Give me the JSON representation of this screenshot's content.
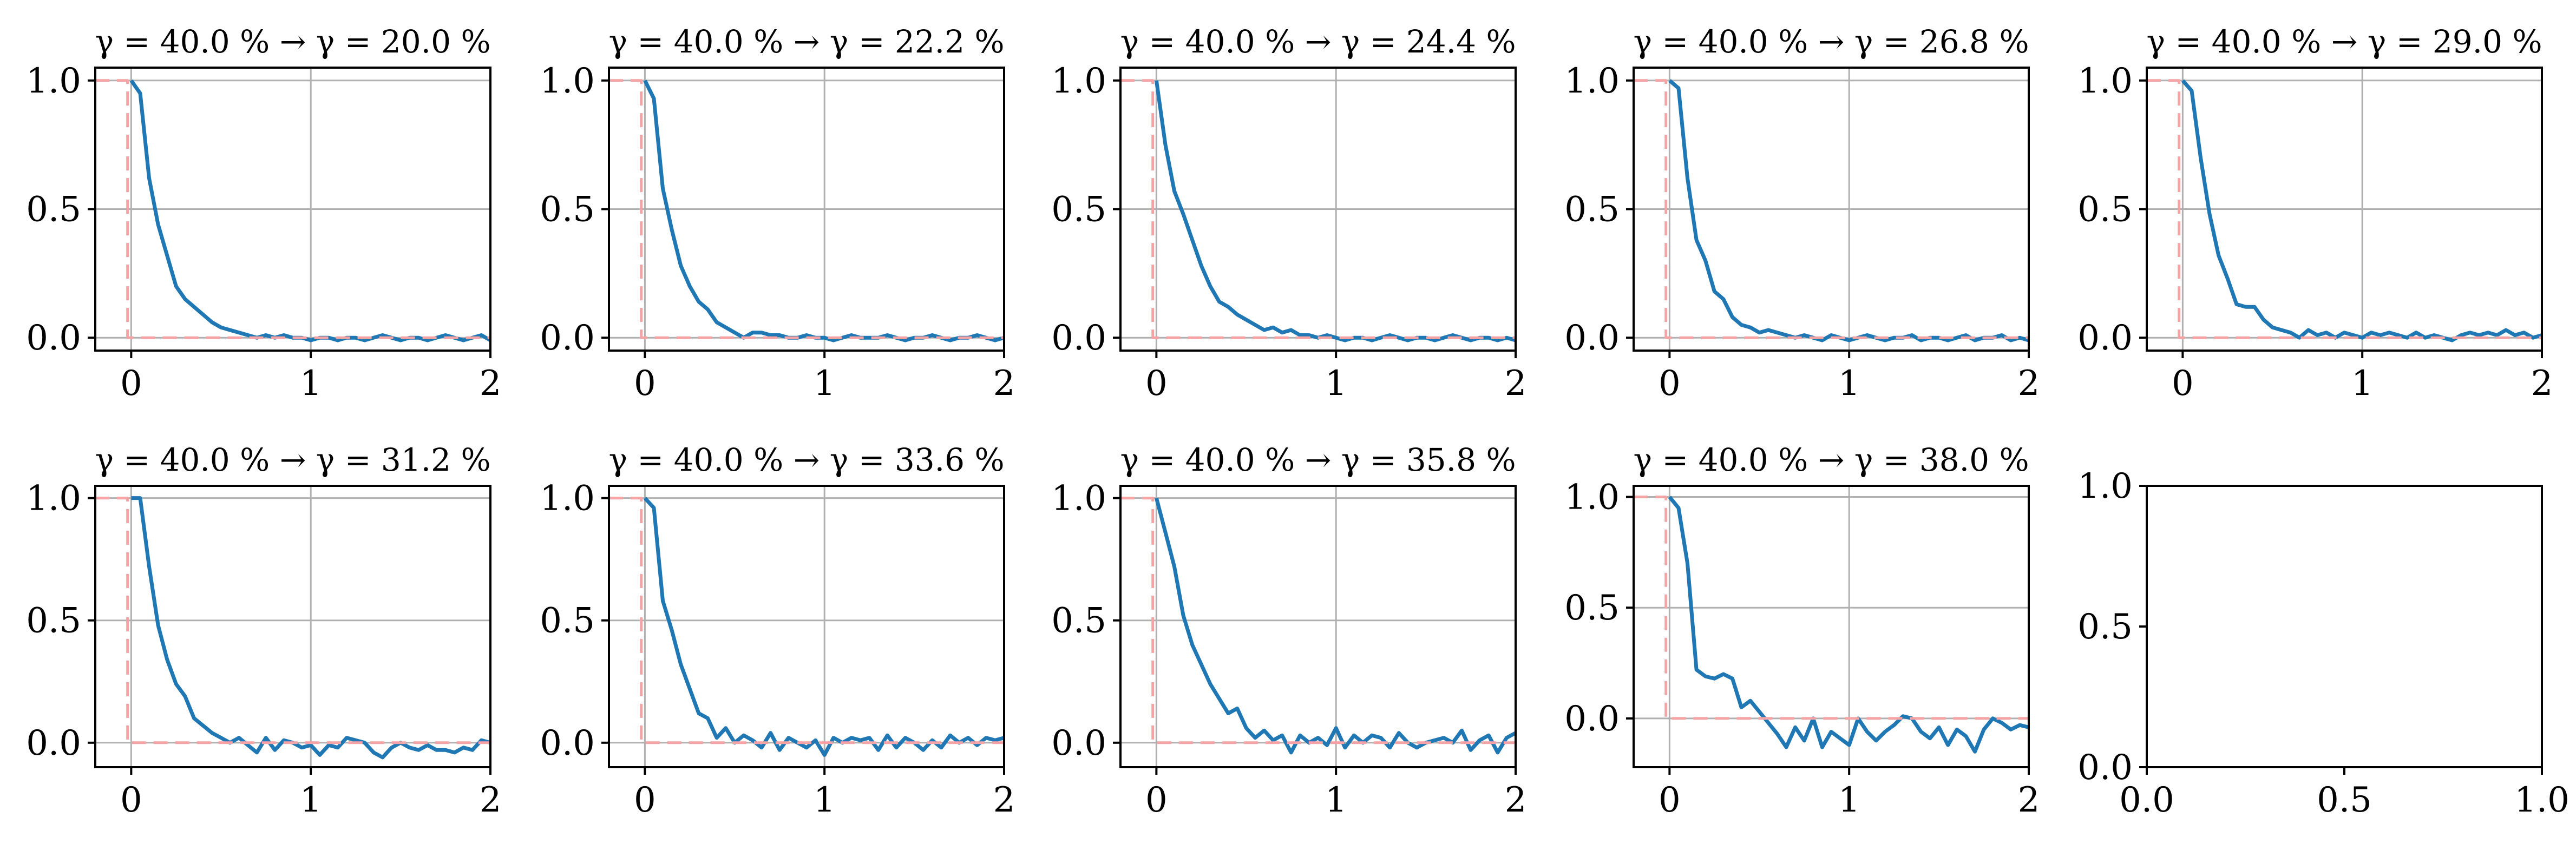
{
  "colors": {
    "line": "#1f77b4",
    "step": "#f4a4a4",
    "grid": "#b0b0b0",
    "axes": "#000000"
  },
  "chart_data": [
    {
      "type": "line",
      "title": "γ = 40.0 % → γ = 20.0 %",
      "xlim": [
        -0.2,
        2
      ],
      "ylim": [
        -0.05,
        1.05
      ],
      "xticks": [
        "0",
        "1",
        "2"
      ],
      "yticks": [
        "0.0",
        "0.5",
        "1.0"
      ],
      "grid": true,
      "series": [
        {
          "x": [
            0,
            0.05,
            0.1,
            0.15,
            0.2,
            0.25,
            0.3,
            0.35,
            0.4,
            0.45,
            0.5,
            0.55,
            0.6,
            0.65,
            0.7,
            0.75,
            0.8,
            0.85,
            0.9,
            0.95,
            1.0,
            1.05,
            1.1,
            1.15,
            1.2,
            1.25,
            1.3,
            1.35,
            1.4,
            1.45,
            1.5,
            1.55,
            1.6,
            1.65,
            1.7,
            1.75,
            1.8,
            1.85,
            1.9,
            1.95,
            2.0
          ],
          "y": [
            1.0,
            0.95,
            0.62,
            0.44,
            0.32,
            0.2,
            0.15,
            0.12,
            0.09,
            0.06,
            0.04,
            0.03,
            0.02,
            0.01,
            0.0,
            0.01,
            0.0,
            0.01,
            0.0,
            0.0,
            -0.01,
            0.0,
            0.0,
            -0.01,
            0.0,
            0.0,
            -0.01,
            0.0,
            0.01,
            0.0,
            -0.01,
            0.0,
            0.0,
            -0.01,
            0.0,
            0.01,
            0.0,
            -0.01,
            0.0,
            0.01,
            -0.01
          ]
        },
        {
          "x": [
            -0.2,
            -0.02,
            -0.02,
            2.0
          ],
          "y": [
            1.0,
            1.0,
            0.0,
            0.0
          ]
        }
      ]
    },
    {
      "type": "line",
      "title": "γ = 40.0 % → γ = 22.2 %",
      "xlim": [
        -0.2,
        2
      ],
      "ylim": [
        -0.05,
        1.05
      ],
      "xticks": [
        "0",
        "1",
        "2"
      ],
      "yticks": [
        "0.0",
        "0.5",
        "1.0"
      ],
      "grid": true,
      "series": [
        {
          "x": [
            0,
            0.05,
            0.1,
            0.15,
            0.2,
            0.25,
            0.3,
            0.35,
            0.4,
            0.45,
            0.5,
            0.55,
            0.6,
            0.65,
            0.7,
            0.75,
            0.8,
            0.85,
            0.9,
            0.95,
            1.0,
            1.05,
            1.1,
            1.15,
            1.2,
            1.25,
            1.3,
            1.35,
            1.4,
            1.45,
            1.5,
            1.55,
            1.6,
            1.65,
            1.7,
            1.75,
            1.8,
            1.85,
            1.9,
            1.95,
            2.0
          ],
          "y": [
            1.0,
            0.93,
            0.58,
            0.42,
            0.28,
            0.2,
            0.14,
            0.11,
            0.06,
            0.04,
            0.02,
            0.0,
            0.02,
            0.02,
            0.01,
            0.01,
            0.0,
            0.0,
            0.01,
            0.0,
            0.0,
            -0.01,
            0.0,
            0.01,
            0.0,
            0.0,
            0.0,
            0.01,
            0.0,
            -0.01,
            0.0,
            0.0,
            0.01,
            0.0,
            -0.01,
            0.0,
            0.0,
            0.01,
            0.0,
            -0.01,
            0.0
          ]
        },
        {
          "x": [
            -0.2,
            -0.02,
            -0.02,
            2.0
          ],
          "y": [
            1.0,
            1.0,
            0.0,
            0.0
          ]
        }
      ]
    },
    {
      "type": "line",
      "title": "γ = 40.0 % → γ = 24.4 %",
      "xlim": [
        -0.2,
        2
      ],
      "ylim": [
        -0.05,
        1.05
      ],
      "xticks": [
        "0",
        "1",
        "2"
      ],
      "yticks": [
        "0.0",
        "0.5",
        "1.0"
      ],
      "grid": true,
      "series": [
        {
          "x": [
            0,
            0.05,
            0.1,
            0.15,
            0.2,
            0.25,
            0.3,
            0.35,
            0.4,
            0.45,
            0.5,
            0.55,
            0.6,
            0.65,
            0.7,
            0.75,
            0.8,
            0.85,
            0.9,
            0.95,
            1.0,
            1.05,
            1.1,
            1.15,
            1.2,
            1.25,
            1.3,
            1.35,
            1.4,
            1.45,
            1.5,
            1.55,
            1.6,
            1.65,
            1.7,
            1.75,
            1.8,
            1.85,
            1.9,
            1.95,
            2.0
          ],
          "y": [
            1.0,
            0.75,
            0.57,
            0.48,
            0.38,
            0.28,
            0.2,
            0.14,
            0.12,
            0.09,
            0.07,
            0.05,
            0.03,
            0.04,
            0.02,
            0.03,
            0.01,
            0.01,
            0.0,
            0.01,
            0.0,
            -0.01,
            0.0,
            0.0,
            -0.01,
            0.0,
            0.01,
            0.0,
            -0.01,
            0.0,
            0.0,
            -0.01,
            0.0,
            0.01,
            0.0,
            -0.01,
            0.0,
            0.0,
            -0.01,
            0.0,
            -0.01
          ]
        },
        {
          "x": [
            -0.2,
            -0.02,
            -0.02,
            2.0
          ],
          "y": [
            1.0,
            1.0,
            0.0,
            0.0
          ]
        }
      ]
    },
    {
      "type": "line",
      "title": "γ = 40.0 % → γ = 26.8 %",
      "xlim": [
        -0.2,
        2
      ],
      "ylim": [
        -0.05,
        1.05
      ],
      "xticks": [
        "0",
        "1",
        "2"
      ],
      "yticks": [
        "0.0",
        "0.5",
        "1.0"
      ],
      "grid": true,
      "series": [
        {
          "x": [
            0,
            0.05,
            0.1,
            0.15,
            0.2,
            0.25,
            0.3,
            0.35,
            0.4,
            0.45,
            0.5,
            0.55,
            0.6,
            0.65,
            0.7,
            0.75,
            0.8,
            0.85,
            0.9,
            0.95,
            1.0,
            1.05,
            1.1,
            1.15,
            1.2,
            1.25,
            1.3,
            1.35,
            1.4,
            1.45,
            1.5,
            1.55,
            1.6,
            1.65,
            1.7,
            1.75,
            1.8,
            1.85,
            1.9,
            1.95,
            2.0
          ],
          "y": [
            1.0,
            0.97,
            0.62,
            0.38,
            0.3,
            0.18,
            0.15,
            0.08,
            0.05,
            0.04,
            0.02,
            0.03,
            0.02,
            0.01,
            0.0,
            0.01,
            0.0,
            -0.01,
            0.01,
            0.0,
            -0.01,
            0.0,
            0.01,
            0.0,
            -0.01,
            0.0,
            0.0,
            0.01,
            -0.01,
            0.0,
            0.0,
            -0.01,
            0.0,
            0.01,
            -0.01,
            0.0,
            0.0,
            0.01,
            -0.01,
            0.0,
            -0.01
          ]
        },
        {
          "x": [
            -0.2,
            -0.02,
            -0.02,
            2.0
          ],
          "y": [
            1.0,
            1.0,
            0.0,
            0.0
          ]
        }
      ]
    },
    {
      "type": "line",
      "title": "γ = 40.0 % → γ = 29.0 %",
      "xlim": [
        -0.2,
        2
      ],
      "ylim": [
        -0.05,
        1.05
      ],
      "xticks": [
        "0",
        "1",
        "2"
      ],
      "yticks": [
        "0.0",
        "0.5",
        "1.0"
      ],
      "grid": true,
      "series": [
        {
          "x": [
            0,
            0.05,
            0.1,
            0.15,
            0.2,
            0.25,
            0.3,
            0.35,
            0.4,
            0.45,
            0.5,
            0.55,
            0.6,
            0.65,
            0.7,
            0.75,
            0.8,
            0.85,
            0.9,
            0.95,
            1.0,
            1.05,
            1.1,
            1.15,
            1.2,
            1.25,
            1.3,
            1.35,
            1.4,
            1.45,
            1.5,
            1.55,
            1.6,
            1.65,
            1.7,
            1.75,
            1.8,
            1.85,
            1.9,
            1.95,
            2.0
          ],
          "y": [
            1.0,
            0.96,
            0.7,
            0.48,
            0.32,
            0.23,
            0.13,
            0.12,
            0.12,
            0.07,
            0.04,
            0.03,
            0.02,
            0.0,
            0.03,
            0.01,
            0.02,
            0.0,
            0.02,
            0.01,
            0.0,
            0.02,
            0.01,
            0.02,
            0.01,
            0.0,
            0.02,
            0.0,
            0.01,
            0.0,
            -0.01,
            0.01,
            0.02,
            0.01,
            0.02,
            0.01,
            0.03,
            0.01,
            0.02,
            0.0,
            0.01
          ]
        },
        {
          "x": [
            -0.2,
            -0.02,
            -0.02,
            2.0
          ],
          "y": [
            1.0,
            1.0,
            0.0,
            0.0
          ]
        }
      ]
    },
    {
      "type": "line",
      "title": "γ = 40.0 % → γ = 31.2 %",
      "xlim": [
        -0.2,
        2
      ],
      "ylim": [
        -0.1,
        1.05
      ],
      "xticks": [
        "0",
        "1",
        "2"
      ],
      "yticks": [
        "0.0",
        "0.5",
        "1.0"
      ],
      "grid": true,
      "series": [
        {
          "x": [
            0,
            0.05,
            0.1,
            0.15,
            0.2,
            0.25,
            0.3,
            0.35,
            0.4,
            0.45,
            0.5,
            0.55,
            0.6,
            0.65,
            0.7,
            0.75,
            0.8,
            0.85,
            0.9,
            0.95,
            1.0,
            1.05,
            1.1,
            1.15,
            1.2,
            1.25,
            1.3,
            1.35,
            1.4,
            1.45,
            1.5,
            1.55,
            1.6,
            1.65,
            1.7,
            1.75,
            1.8,
            1.85,
            1.9,
            1.95,
            2.0
          ],
          "y": [
            1.0,
            1.0,
            0.72,
            0.48,
            0.34,
            0.24,
            0.19,
            0.1,
            0.07,
            0.04,
            0.02,
            0.0,
            0.02,
            -0.01,
            -0.04,
            0.02,
            -0.03,
            0.01,
            0.0,
            -0.02,
            -0.01,
            -0.05,
            -0.01,
            -0.02,
            0.02,
            0.01,
            0.0,
            -0.04,
            -0.06,
            -0.02,
            0.0,
            -0.02,
            -0.03,
            -0.01,
            -0.03,
            -0.03,
            -0.04,
            -0.02,
            -0.03,
            0.01,
            0.0
          ]
        },
        {
          "x": [
            -0.2,
            -0.02,
            -0.02,
            2.0
          ],
          "y": [
            1.0,
            1.0,
            0.0,
            0.0
          ]
        }
      ]
    },
    {
      "type": "line",
      "title": "γ = 40.0 % → γ = 33.6 %",
      "xlim": [
        -0.2,
        2
      ],
      "ylim": [
        -0.1,
        1.05
      ],
      "xticks": [
        "0",
        "1",
        "2"
      ],
      "yticks": [
        "0.0",
        "0.5",
        "1.0"
      ],
      "grid": true,
      "series": [
        {
          "x": [
            0,
            0.05,
            0.1,
            0.15,
            0.2,
            0.25,
            0.3,
            0.35,
            0.4,
            0.45,
            0.5,
            0.55,
            0.6,
            0.65,
            0.7,
            0.75,
            0.8,
            0.85,
            0.9,
            0.95,
            1.0,
            1.05,
            1.1,
            1.15,
            1.2,
            1.25,
            1.3,
            1.35,
            1.4,
            1.45,
            1.5,
            1.55,
            1.6,
            1.65,
            1.7,
            1.75,
            1.8,
            1.85,
            1.9,
            1.95,
            2.0
          ],
          "y": [
            1.0,
            0.96,
            0.58,
            0.46,
            0.32,
            0.22,
            0.12,
            0.1,
            0.02,
            0.06,
            0.0,
            0.03,
            0.01,
            -0.02,
            0.04,
            -0.03,
            0.02,
            0.0,
            -0.02,
            0.01,
            -0.05,
            0.02,
            0.0,
            0.02,
            0.01,
            0.02,
            -0.03,
            0.03,
            -0.02,
            0.02,
            0.0,
            -0.03,
            0.01,
            -0.02,
            0.03,
            0.0,
            0.02,
            -0.01,
            0.02,
            0.01,
            0.02
          ]
        },
        {
          "x": [
            -0.2,
            -0.02,
            -0.02,
            2.0
          ],
          "y": [
            1.0,
            1.0,
            0.0,
            0.0
          ]
        }
      ]
    },
    {
      "type": "line",
      "title": "γ = 40.0 % → γ = 35.8 %",
      "xlim": [
        -0.2,
        2
      ],
      "ylim": [
        -0.1,
        1.05
      ],
      "xticks": [
        "0",
        "1",
        "2"
      ],
      "yticks": [
        "0.0",
        "0.5",
        "1.0"
      ],
      "grid": true,
      "series": [
        {
          "x": [
            0,
            0.05,
            0.1,
            0.15,
            0.2,
            0.25,
            0.3,
            0.35,
            0.4,
            0.45,
            0.5,
            0.55,
            0.6,
            0.65,
            0.7,
            0.75,
            0.8,
            0.85,
            0.9,
            0.95,
            1.0,
            1.05,
            1.1,
            1.15,
            1.2,
            1.25,
            1.3,
            1.35,
            1.4,
            1.45,
            1.5,
            1.55,
            1.6,
            1.65,
            1.7,
            1.75,
            1.8,
            1.85,
            1.9,
            1.95,
            2.0
          ],
          "y": [
            1.0,
            0.86,
            0.72,
            0.52,
            0.4,
            0.32,
            0.24,
            0.18,
            0.12,
            0.14,
            0.06,
            0.02,
            0.05,
            0.01,
            0.03,
            -0.04,
            0.03,
            0.0,
            0.02,
            -0.01,
            0.06,
            -0.02,
            0.03,
            0.0,
            0.03,
            0.02,
            -0.02,
            0.04,
            0.0,
            -0.02,
            0.0,
            0.01,
            0.02,
            0.0,
            0.05,
            -0.03,
            0.01,
            0.03,
            -0.04,
            0.02,
            0.04
          ]
        },
        {
          "x": [
            -0.2,
            -0.02,
            -0.02,
            2.0
          ],
          "y": [
            1.0,
            1.0,
            0.0,
            0.0
          ]
        }
      ]
    },
    {
      "type": "line",
      "title": "γ = 40.0 % → γ = 38.0 %",
      "xlim": [
        -0.2,
        2
      ],
      "ylim": [
        -0.22,
        1.05
      ],
      "xticks": [
        "0",
        "1",
        "2"
      ],
      "yticks": [
        "0.0",
        "0.5",
        "1.0"
      ],
      "grid": true,
      "series": [
        {
          "x": [
            0,
            0.05,
            0.1,
            0.15,
            0.2,
            0.25,
            0.3,
            0.35,
            0.4,
            0.45,
            0.5,
            0.55,
            0.6,
            0.65,
            0.7,
            0.75,
            0.8,
            0.85,
            0.9,
            0.95,
            1.0,
            1.05,
            1.1,
            1.15,
            1.2,
            1.25,
            1.3,
            1.35,
            1.4,
            1.45,
            1.5,
            1.55,
            1.6,
            1.65,
            1.7,
            1.75,
            1.8,
            1.85,
            1.9,
            1.95,
            2.0
          ],
          "y": [
            1.0,
            0.95,
            0.7,
            0.22,
            0.19,
            0.18,
            0.2,
            0.18,
            0.05,
            0.08,
            0.03,
            -0.02,
            -0.07,
            -0.13,
            -0.04,
            -0.1,
            0.0,
            -0.13,
            -0.06,
            -0.09,
            -0.12,
            0.0,
            -0.06,
            -0.1,
            -0.06,
            -0.03,
            0.01,
            0.0,
            -0.06,
            -0.09,
            -0.04,
            -0.12,
            -0.05,
            -0.08,
            -0.15,
            -0.05,
            0.0,
            -0.02,
            -0.05,
            -0.03,
            -0.04
          ]
        },
        {
          "x": [
            -0.2,
            -0.02,
            -0.02,
            2.0
          ],
          "y": [
            1.0,
            1.0,
            0.0,
            0.0
          ]
        }
      ]
    },
    {
      "type": "line",
      "title": "",
      "xlim": [
        0,
        1
      ],
      "ylim": [
        0,
        1
      ],
      "xticks": [
        "0.0",
        "0.5",
        "1.0"
      ],
      "yticks": [
        "0.0",
        "0.5",
        "1.0"
      ],
      "grid": false,
      "series": []
    }
  ]
}
